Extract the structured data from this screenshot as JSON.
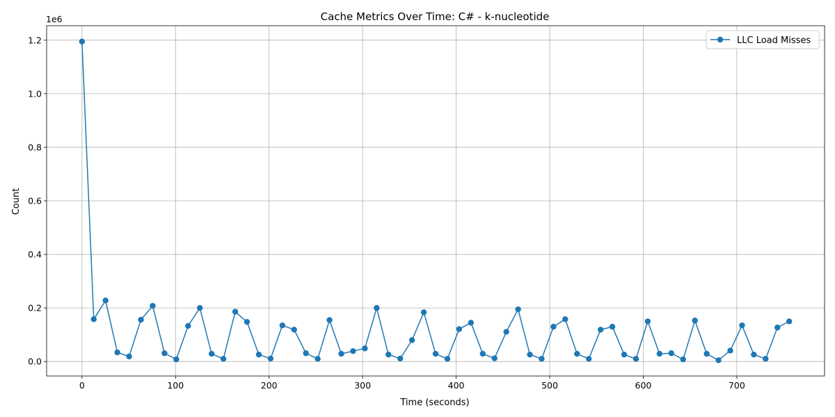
{
  "chart_data": {
    "type": "line",
    "title": "Cache Metrics Over Time: C# - k-nucleotide",
    "xlabel": "Time (seconds)",
    "ylabel": "Count",
    "y_offset_label": "1e6",
    "y_scale": 1000000,
    "xlim": [
      -37.8,
      793.8
    ],
    "ylim": [
      -54000,
      1254000
    ],
    "x_ticks": [
      0,
      100,
      200,
      300,
      400,
      500,
      600,
      700
    ],
    "y_ticks": [
      0,
      200000,
      400000,
      600000,
      800000,
      1000000,
      1200000
    ],
    "y_tick_labels": [
      "0.0",
      "0.2",
      "0.4",
      "0.6",
      "0.8",
      "1.0",
      "1.2"
    ],
    "grid": true,
    "legend_position": "top-right",
    "series": [
      {
        "name": "LLC Load Misses",
        "color": "#1f77b4",
        "marker": "circle",
        "x": [
          0,
          12.6,
          25.2,
          37.8,
          50.4,
          63.0,
          75.6,
          88.2,
          100.8,
          113.4,
          126.0,
          138.6,
          151.2,
          163.8,
          176.4,
          189.0,
          201.6,
          214.2,
          226.8,
          239.4,
          252.0,
          264.6,
          277.2,
          289.8,
          302.4,
          315.0,
          327.6,
          340.2,
          352.8,
          365.4,
          378.0,
          390.6,
          403.2,
          415.8,
          428.4,
          441.0,
          453.6,
          466.2,
          478.8,
          491.4,
          504.0,
          516.6,
          529.2,
          541.8,
          554.4,
          567.0,
          579.6,
          592.2,
          604.8,
          617.4,
          630.0,
          642.6,
          655.2,
          667.8,
          680.4,
          693.0,
          705.6,
          718.2,
          730.8,
          743.4,
          756.0
        ],
        "y": [
          1195000,
          158000,
          228000,
          34000,
          19000,
          156000,
          208000,
          31000,
          8000,
          133000,
          200000,
          29000,
          10000,
          186000,
          148000,
          26000,
          11000,
          135000,
          119000,
          31000,
          10000,
          155000,
          29000,
          39000,
          49000,
          200000,
          26000,
          11000,
          80000,
          184000,
          29000,
          10000,
          121000,
          145000,
          29000,
          12000,
          111000,
          195000,
          26000,
          10000,
          130000,
          158000,
          29000,
          10000,
          119000,
          130000,
          26000,
          10000,
          150000,
          29000,
          31000,
          8000,
          153000,
          29000,
          5000,
          41000,
          135000,
          26000,
          10000,
          127000,
          150000
        ]
      }
    ]
  }
}
